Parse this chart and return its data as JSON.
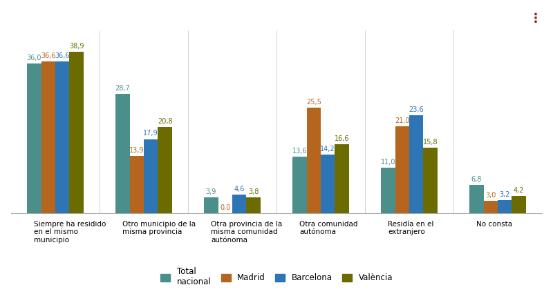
{
  "categories": [
    "Siempre ha residido\nen el mismo\nmunicipio",
    "Otro municipio de la\nmisma provincia",
    "Otra provincia de la\nmisma comunidad\nautónoma",
    "Otra comunidad\nautónoma",
    "Residía en el\nextranjero",
    "No consta"
  ],
  "series": {
    "Total\nnacional": [
      36.0,
      28.7,
      3.9,
      13.6,
      11.0,
      6.8
    ],
    "Madrid": [
      36.6,
      13.9,
      0.0,
      25.5,
      21.0,
      3.0
    ],
    "Barcelona": [
      36.6,
      17.9,
      4.6,
      14.2,
      23.6,
      3.2
    ],
    "València": [
      38.9,
      20.8,
      3.8,
      16.6,
      15.8,
      4.2
    ]
  },
  "colors": {
    "Total\nnacional": "#4a8f8c",
    "Madrid": "#b5651d",
    "Barcelona": "#2e75b6",
    "València": "#6b6b00"
  },
  "legend_labels": [
    "Total\nnacional",
    "Madrid",
    "Barcelona",
    "València"
  ],
  "ylim": [
    0,
    44
  ],
  "bar_width": 0.16,
  "background_color": "#ffffff",
  "label_fontsize": 7.0,
  "tick_fontsize": 7.5,
  "label_color": "#404040"
}
